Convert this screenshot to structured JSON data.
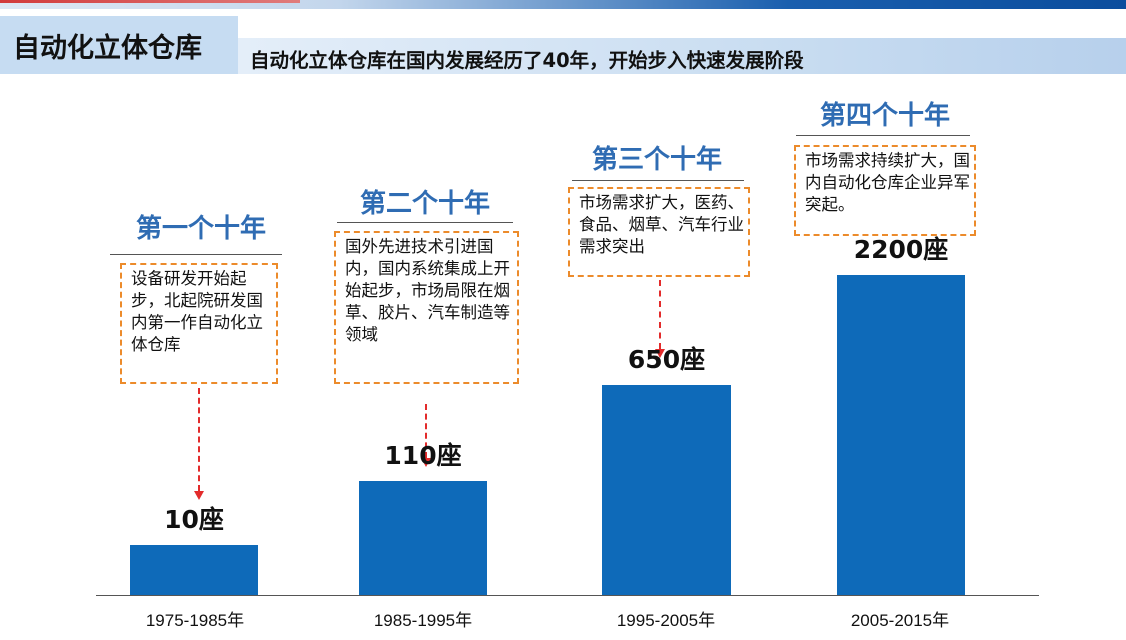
{
  "header": {
    "title": "自动化立体仓库",
    "subtitle": "自动化立体仓库在国内发展经历了40年，开始步入快速发展阶段"
  },
  "colors": {
    "bar": "#0e6ab9",
    "period_title": "#2f6cb3",
    "note_border": "#ec8b2b",
    "connector": "#e32b2b",
    "title_box": "#c6dcf2"
  },
  "periods": [
    {
      "title": "第一个十年",
      "note": "设备研发开始起步，北起院研发国内第一作自动化立体仓库"
    },
    {
      "title": "第二个十年",
      "note": "国外先进技术引进国内，国内系统集成上开始起步，市场局限在烟草、胶片、汽车制造等领域"
    },
    {
      "title": "第三个十年",
      "note": "市场需求扩大，医药、食品、烟草、汽车行业需求突出"
    },
    {
      "title": "第四个十年",
      "note": "市场需求持续扩大，国内自动化仓库企业异军突起。"
    }
  ],
  "chart_data": {
    "type": "bar",
    "categories": [
      "1975-1985年",
      "1985-1995年",
      "1995-2005年",
      "2005-2015年"
    ],
    "values": [
      10,
      110,
      650,
      2200
    ],
    "value_labels": [
      "10座",
      "110座",
      "650座",
      "2200座"
    ],
    "title": "",
    "xlabel": "",
    "ylabel": "",
    "grid": false,
    "scale": "non-linear (visual emphasis)"
  }
}
